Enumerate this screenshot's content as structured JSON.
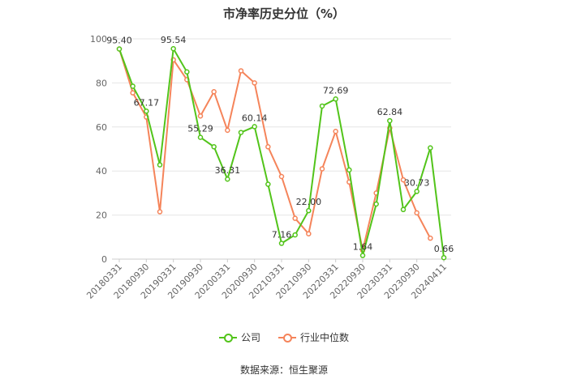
{
  "colors": {
    "company": "#52c41a",
    "industry": "#f5845a",
    "grid": "#e6e6e6",
    "axis": "#888888"
  },
  "legend": {
    "company": "公司",
    "industry": "行业中位数"
  },
  "source": "数据来源：恒生聚源",
  "chart_data": {
    "type": "line",
    "title": "市净率历史分位（%）",
    "ylim": [
      0,
      100
    ],
    "y_ticks": [
      0,
      20,
      40,
      60,
      80,
      100
    ],
    "x_tick_labels": [
      "20180331",
      "20180930",
      "20190331",
      "20190930",
      "20200331",
      "20200930",
      "20210331",
      "20210930",
      "20220331",
      "20220930",
      "20230331",
      "20230930",
      "20240411"
    ],
    "grid": true,
    "legend_position": "bottom",
    "x": [
      "20180331",
      "20180630",
      "20180930",
      "20181231",
      "20190331",
      "20190630",
      "20190930",
      "20191231",
      "20200331",
      "20200630",
      "20200930",
      "20201231",
      "20210331",
      "20210630",
      "20210930",
      "20211231",
      "20220331",
      "20220630",
      "20220930",
      "20221231",
      "20230331",
      "20230630",
      "20230930",
      "20231231",
      "20240411"
    ],
    "series": [
      {
        "name": "公司",
        "values": [
          95.4,
          78.5,
          67.17,
          42.8,
          95.54,
          85.0,
          55.29,
          51.0,
          36.31,
          57.5,
          60.14,
          34.0,
          7.16,
          11.0,
          22.0,
          69.5,
          72.69,
          40.5,
          1.64,
          25.0,
          62.84,
          22.5,
          30.73,
          50.5,
          0.66
        ],
        "labels": {
          "0": "95.40",
          "2": "67.17",
          "4": "95.54",
          "6": "55.29",
          "8": "36.31",
          "10": "60.14",
          "12": "7.16",
          "14": "22.00",
          "16": "72.69",
          "18": "1.64",
          "20": "62.84",
          "22": "30.73",
          "24": "0.66"
        }
      },
      {
        "name": "行业中位数",
        "values": [
          95.4,
          75.5,
          64.5,
          21.5,
          90.5,
          81.5,
          65.0,
          76.0,
          58.5,
          85.5,
          80.0,
          51.0,
          37.5,
          18.5,
          11.5,
          41.0,
          58.0,
          35.0,
          4.0,
          30.0,
          59.5,
          36.0,
          21.0,
          9.5,
          null
        ]
      }
    ]
  }
}
